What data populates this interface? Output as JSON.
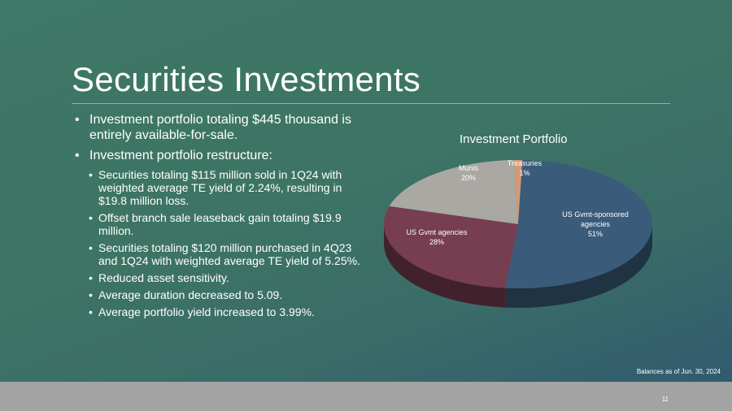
{
  "slide": {
    "title": "Securities Investments",
    "bullets": [
      {
        "text": "Investment portfolio totaling $445 thousand is entirely available-for-sale.",
        "level": 1
      },
      {
        "text": "Investment portfolio restructure:",
        "level": 1
      },
      {
        "text": "Securities totaling $115 million sold in 1Q24 with weighted average TE yield of 2.24%, resulting in $19.8 million loss.",
        "level": 2
      },
      {
        "text": "Offset branch sale leaseback gain totaling $19.9 million.",
        "level": 2
      },
      {
        "text": "Securities totaling $120 million purchased in 4Q23 and 1Q24 with weighted average TE yield of 5.25%.",
        "level": 2
      },
      {
        "text": "Reduced asset sensitivity.",
        "level": 2
      },
      {
        "text": "Average duration decreased to 5.09.",
        "level": 2
      },
      {
        "text": "Average portfolio yield increased to 3.99%.",
        "level": 2
      }
    ],
    "footnote": "Balances as of Jun. 30, 2024",
    "page_number": "11"
  },
  "chart_data": {
    "type": "pie",
    "title": "Investment Portfolio",
    "slices": [
      {
        "label": "Treasuries",
        "value": 1,
        "pct_label": "1%",
        "color": "#d69a72"
      },
      {
        "label": "US Gvmt-sponsored agencies",
        "value": 51,
        "pct_label": "51%",
        "color": "#3a5c7a"
      },
      {
        "label": "US Gvmt agencies",
        "value": 28,
        "pct_label": "28%",
        "color": "#773d50"
      },
      {
        "label": "Munis",
        "value": 20,
        "pct_label": "20%",
        "color": "#a9a8a3"
      }
    ]
  }
}
